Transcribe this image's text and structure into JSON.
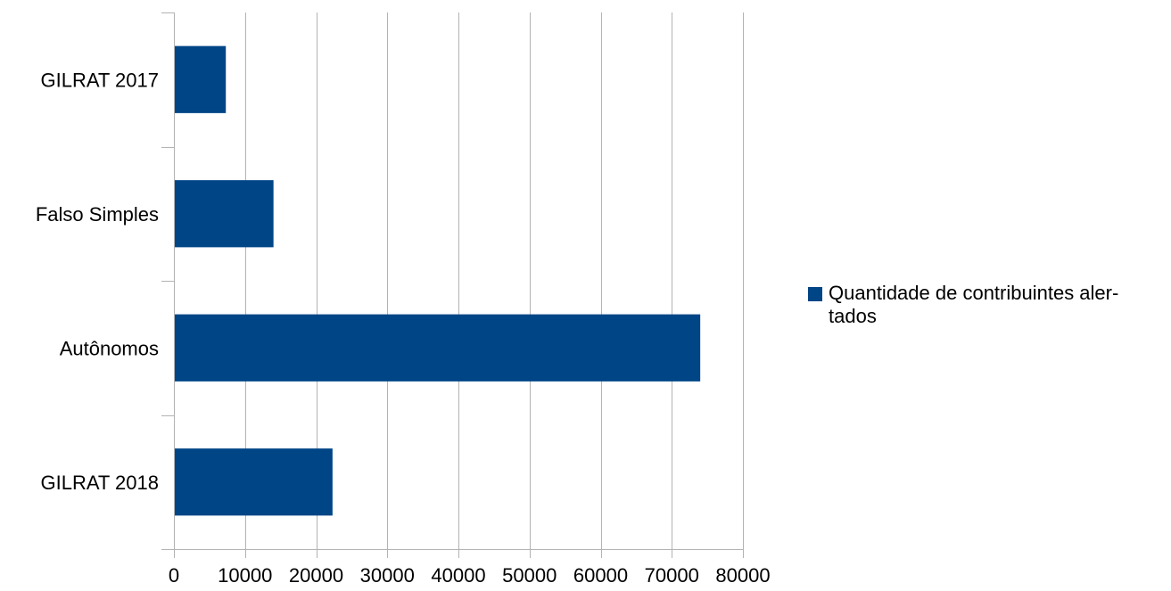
{
  "chart_data": {
    "type": "bar",
    "orientation": "horizontal",
    "categories": [
      "GILRAT 2017",
      "Falso Simples",
      "Autônomos",
      "GILRAT 2018"
    ],
    "series": [
      {
        "name": "Quantidade de contribuintes aler-tados",
        "values": [
          7300,
          14000,
          74000,
          22300
        ]
      }
    ],
    "xlim": [
      0,
      80000
    ],
    "x_ticks": [
      0,
      10000,
      20000,
      30000,
      40000,
      50000,
      60000,
      70000,
      80000
    ],
    "grid": "vertical",
    "legend_position": "right",
    "bar_color": "#004586",
    "legend": {
      "line1": "Quantidade de contribuintes aler-",
      "line2": "tados"
    }
  }
}
